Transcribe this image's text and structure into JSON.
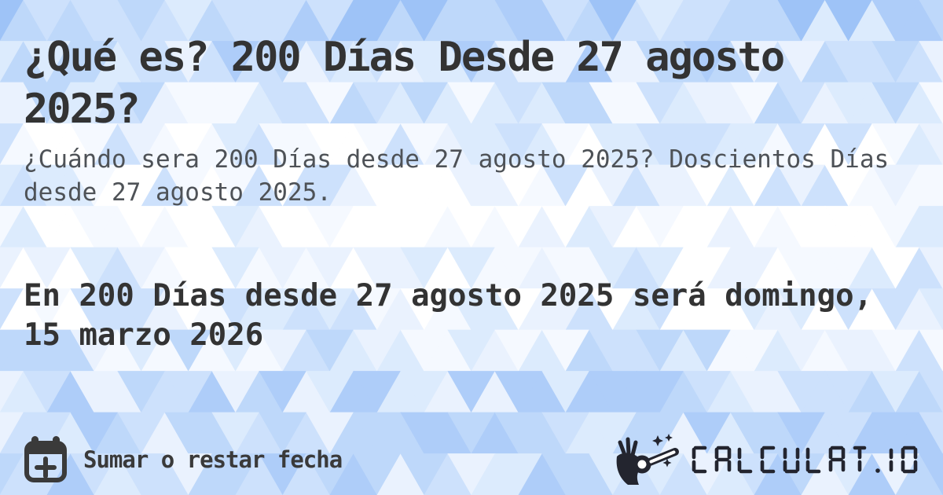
{
  "card": {
    "title": "¿Qué es? 200 Días Desde 27 agosto 2025?",
    "subtitle": "¿Cuándo sera 200 Días desde 27 agosto 2025? Doscientos Días desde 27 agosto 2025.",
    "answer": "En 200 Días desde 27 agosto 2025 será domingo, 15 marzo 2026"
  },
  "footer": {
    "action_label": "Sumar o restar fecha",
    "brand_text": "CALCULAT.IO",
    "calendar_icon": "calendar-plus-icon",
    "wand_icon": "magic-wand-icon"
  },
  "colors": {
    "title": "#333333",
    "subtitle": "#4e5257",
    "answer": "#333333",
    "footer_text": "#3a3a3a",
    "logo": "#23252f",
    "background_palette": [
      "#ffffff",
      "#f5f9ff",
      "#eaf2fe",
      "#dcebfd",
      "#cde1fc",
      "#bed8fa",
      "#aecdf9",
      "#9ec3f7"
    ]
  }
}
